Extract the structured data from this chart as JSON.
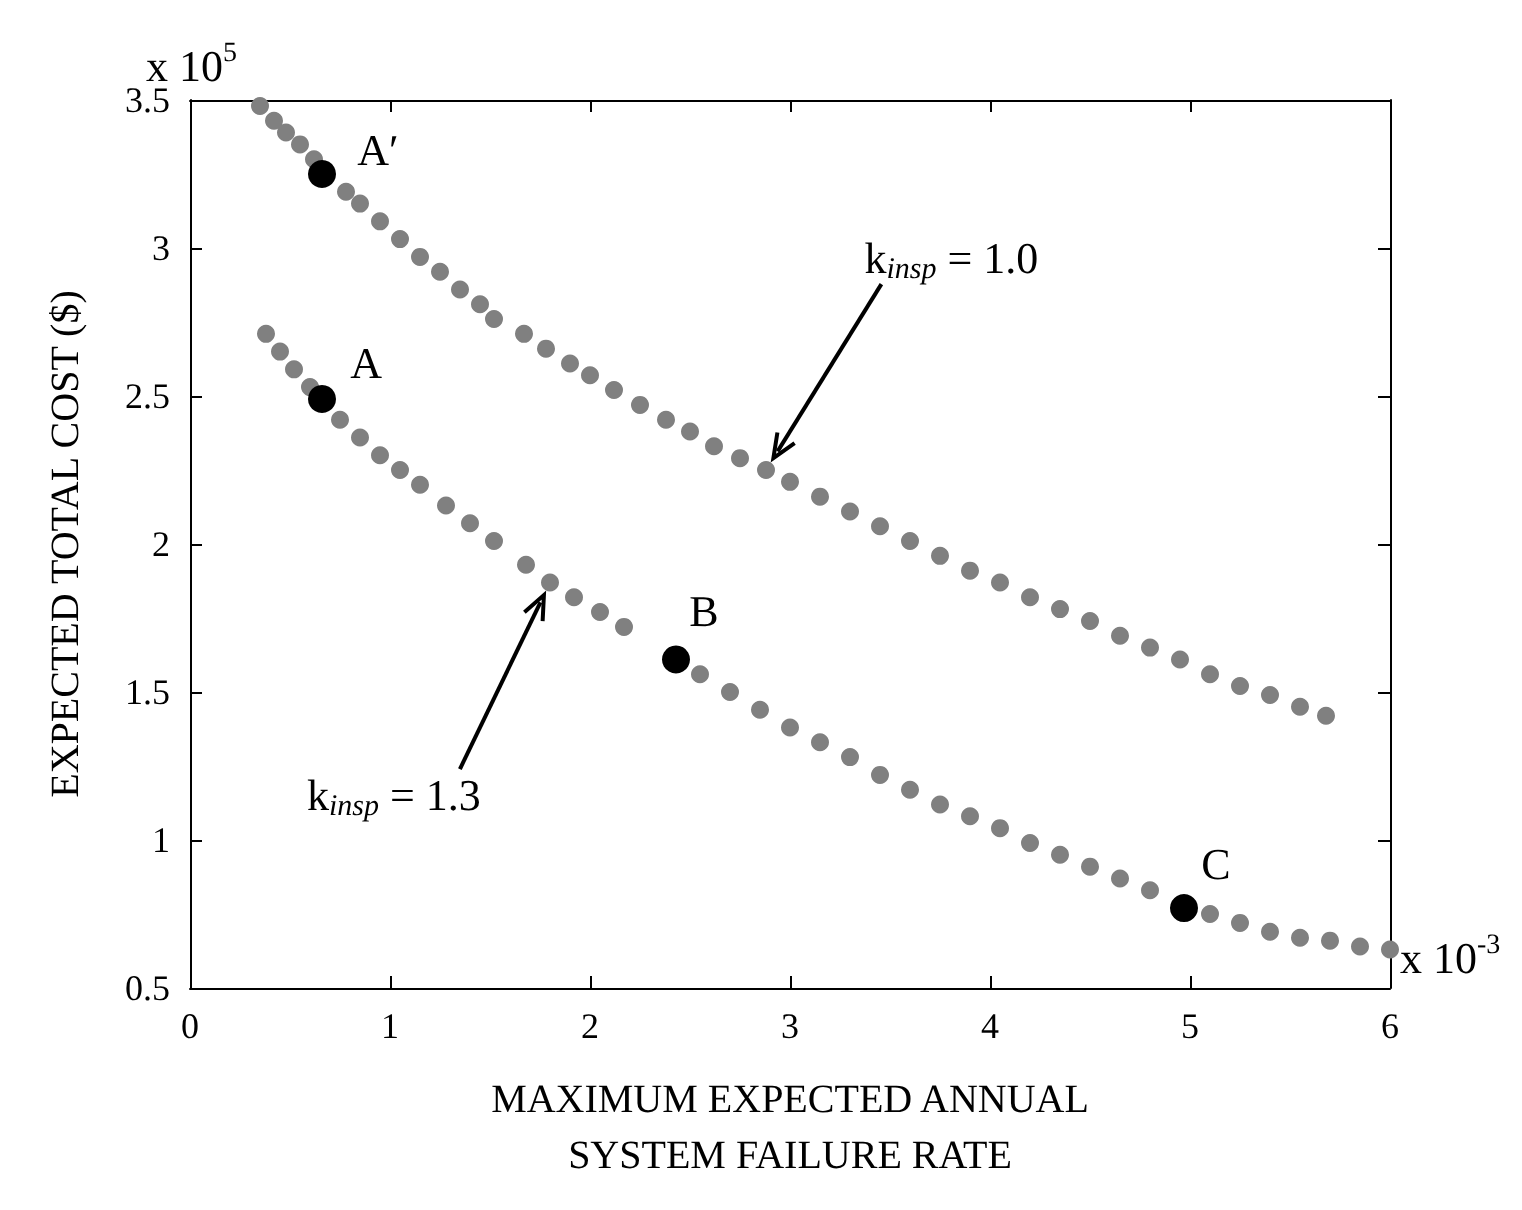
{
  "chart_data": {
    "type": "scatter",
    "xlabel": "MAXIMUM EXPECTED ANNUAL\nSYSTEM FAILURE RATE",
    "ylabel": "EXPECTED TOTAL COST ($)",
    "xlim": [
      0,
      6
    ],
    "xticks": [
      0,
      1,
      2,
      3,
      4,
      5,
      6
    ],
    "ylim": [
      0.5,
      3.5
    ],
    "yticks": [
      0.5,
      1,
      1.5,
      2,
      2.5,
      3,
      3.5
    ],
    "grid": false,
    "marker": "circle",
    "series": [
      {
        "color": "#808080",
        "x": [
          0.35,
          0.42,
          0.48,
          0.55,
          0.62,
          0.78,
          0.85,
          0.95,
          1.05,
          1.15,
          1.25,
          1.35,
          1.45,
          1.52,
          1.67,
          1.78,
          1.9,
          2.0,
          2.12,
          2.25,
          2.38,
          2.5,
          2.62,
          2.75,
          2.88,
          3.0,
          3.15,
          3.3,
          3.45,
          3.6,
          3.75,
          3.9,
          4.05,
          4.2,
          4.35,
          4.5,
          4.65,
          4.8,
          4.95,
          5.1,
          5.25,
          5.4,
          5.55,
          5.68
        ],
        "values": [
          3.48,
          3.43,
          3.39,
          3.35,
          3.3,
          3.19,
          3.15,
          3.09,
          3.03,
          2.97,
          2.92,
          2.86,
          2.81,
          2.76,
          2.71,
          2.66,
          2.61,
          2.57,
          2.52,
          2.47,
          2.42,
          2.38,
          2.33,
          2.29,
          2.25,
          2.21,
          2.16,
          2.11,
          2.06,
          2.01,
          1.96,
          1.91,
          1.87,
          1.82,
          1.78,
          1.74,
          1.69,
          1.65,
          1.61,
          1.56,
          1.52,
          1.49,
          1.45,
          1.42
        ]
      },
      {
        "color": "#808080",
        "x": [
          0.38,
          0.45,
          0.52,
          0.6,
          0.75,
          0.85,
          0.95,
          1.05,
          1.15,
          1.28,
          1.4,
          1.52,
          1.68,
          1.8,
          1.92,
          2.05,
          2.17,
          2.55,
          2.7,
          2.85,
          3.0,
          3.15,
          3.3,
          3.45,
          3.6,
          3.75,
          3.9,
          4.05,
          4.2,
          4.35,
          4.5,
          4.65,
          4.8,
          5.1,
          5.25,
          5.4,
          5.55,
          5.7,
          5.85,
          6.0
        ],
        "values": [
          2.71,
          2.65,
          2.59,
          2.53,
          2.42,
          2.36,
          2.3,
          2.25,
          2.2,
          2.13,
          2.07,
          2.01,
          1.93,
          1.87,
          1.82,
          1.77,
          1.72,
          1.56,
          1.5,
          1.44,
          1.38,
          1.33,
          1.28,
          1.22,
          1.17,
          1.12,
          1.08,
          1.04,
          0.99,
          0.95,
          0.91,
          0.87,
          0.83,
          0.75,
          0.72,
          0.69,
          0.67,
          0.66,
          0.64,
          0.63
        ]
      },
      {
        "color": "#000000",
        "x": [
          0.66,
          0.66,
          2.43,
          4.97
        ],
        "values": [
          3.25,
          2.49,
          1.61,
          0.77
        ]
      }
    ],
    "annotations": [
      "x 10$^{5}$",
      "x 10$^{-3}$",
      {
        "text": "A′",
        "x": 0.66,
        "y": 3.25
      },
      {
        "text": "A",
        "x": 0.66,
        "y": 2.49
      },
      {
        "text": "B",
        "x": 2.43,
        "y": 1.61
      },
      {
        "text": "C",
        "x": 4.97,
        "y": 0.77
      },
      "k$_{insp}$ = 1.0",
      "k$_{insp}$ = 1.3"
    ]
  }
}
